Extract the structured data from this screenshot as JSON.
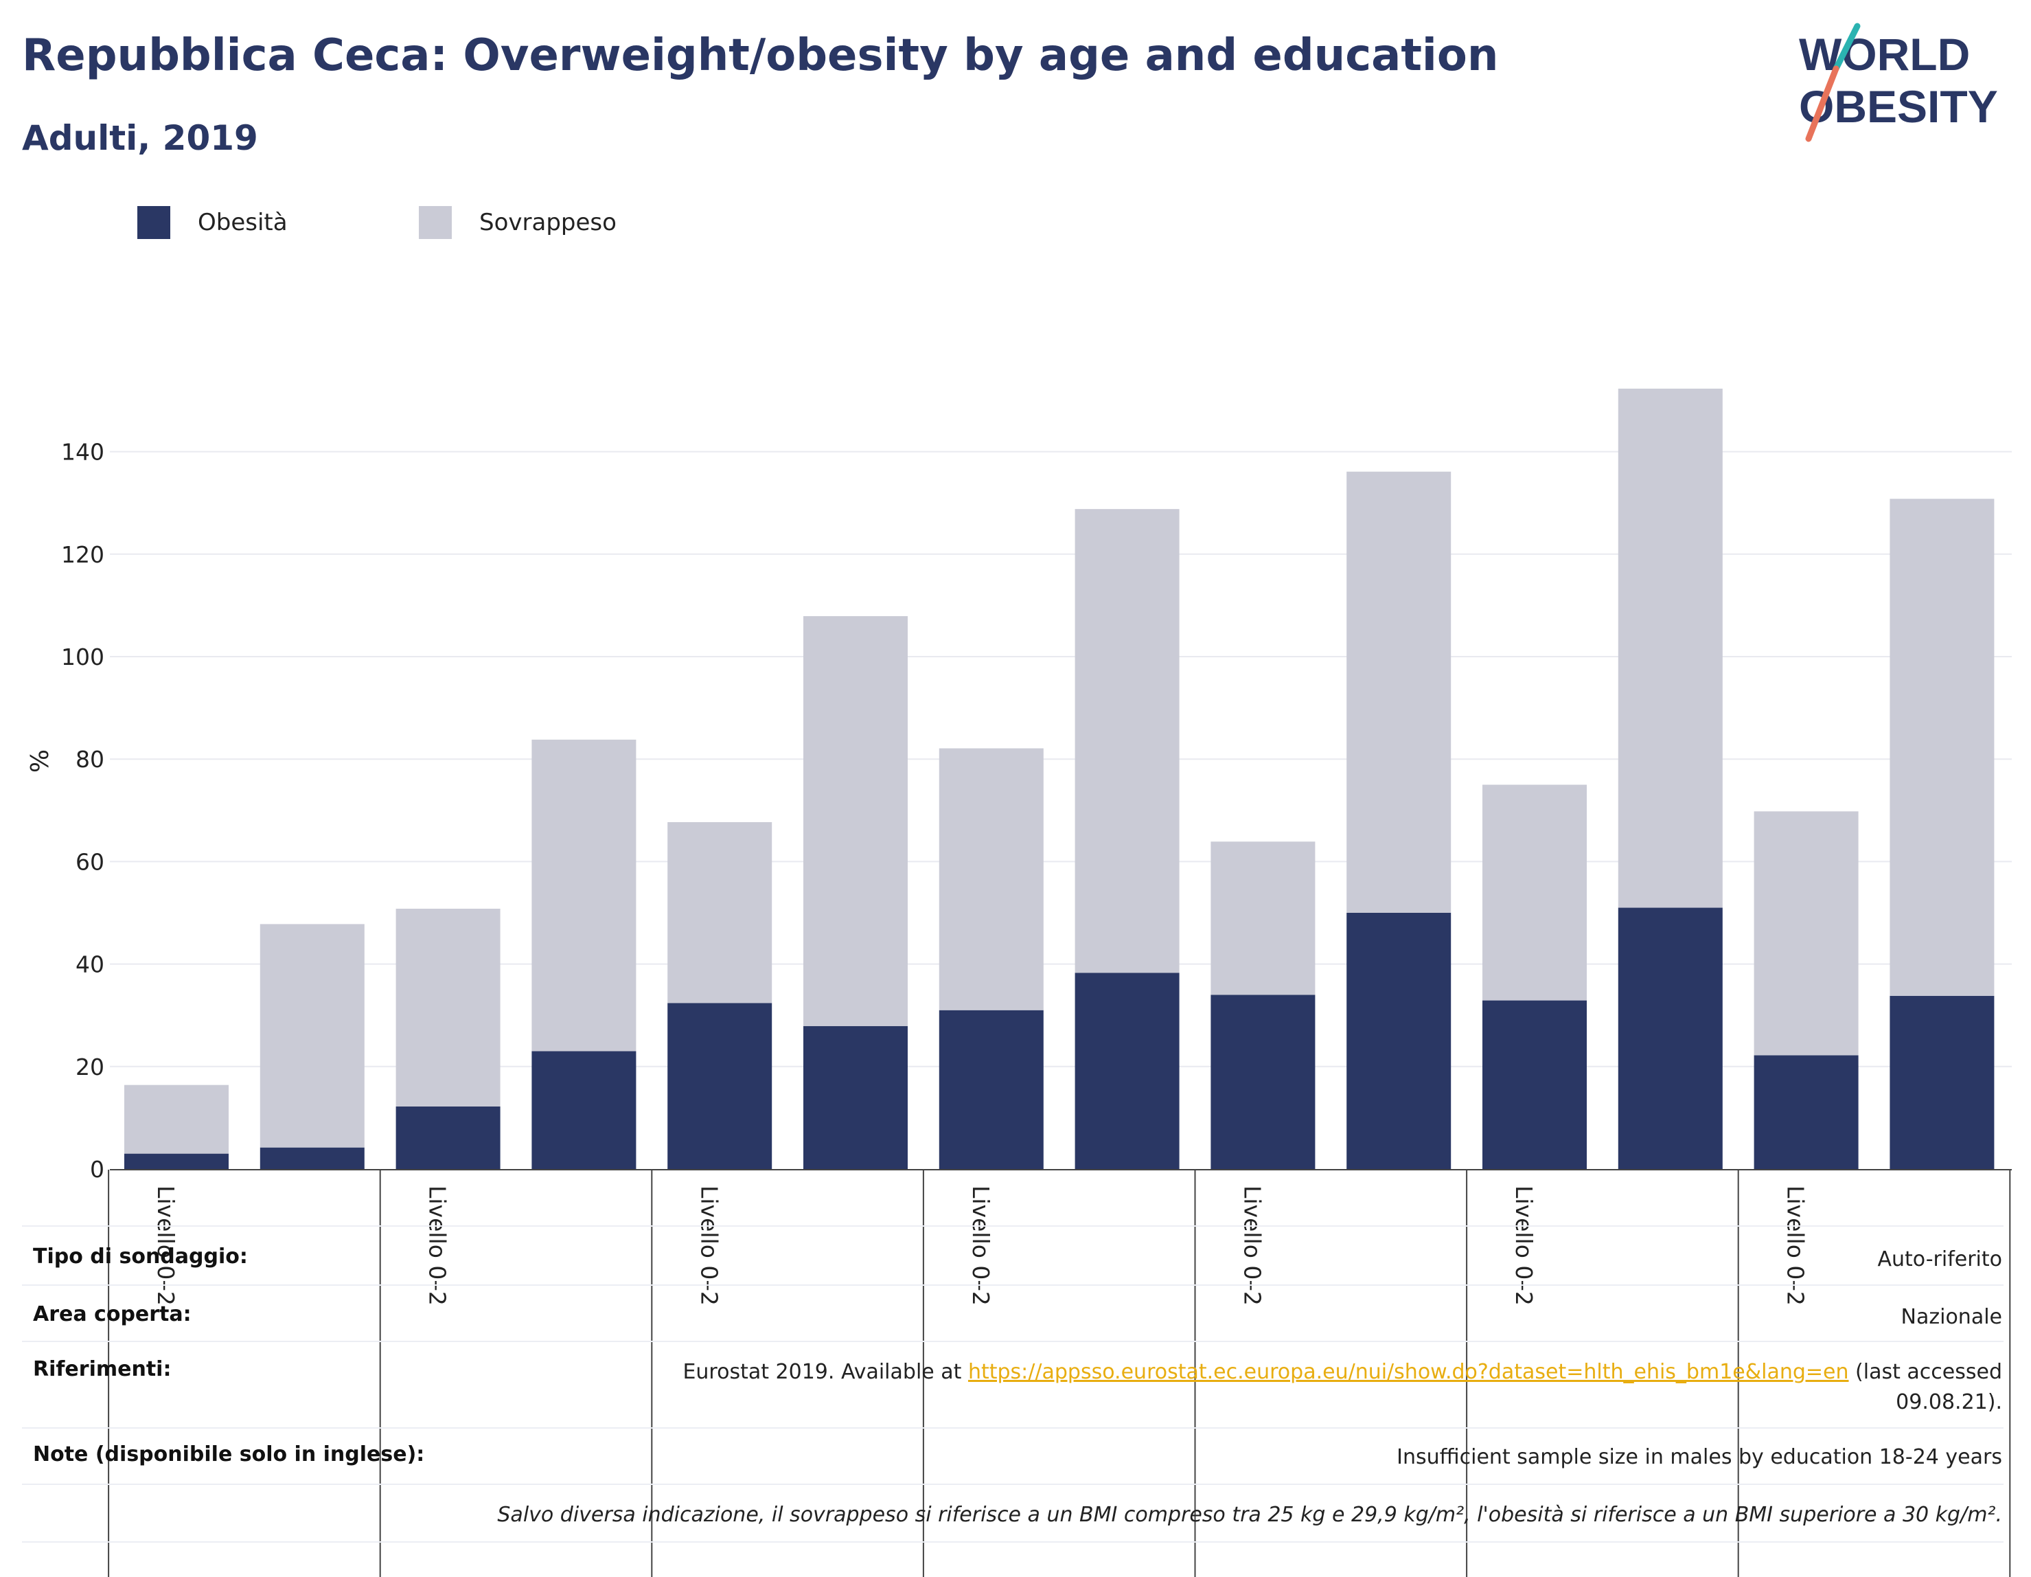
{
  "header": {
    "title": "Repubblica Ceca: Overweight/obesity by age and education",
    "subtitle": "Adulti, 2019"
  },
  "logo": {
    "line1": "WORLD",
    "line2": "OBESITY",
    "colors": {
      "text": "#2a3764",
      "slash_top": "#2bb3b1",
      "slash_bottom": "#e8735a"
    }
  },
  "legend": [
    {
      "label": "Obesità",
      "color": "#2a3764"
    },
    {
      "label": "Sovrappeso",
      "color": "#cacbd6"
    }
  ],
  "chart_data": {
    "type": "bar",
    "stacked": true,
    "ylabel": "%",
    "ylim": [
      0,
      155
    ],
    "yticks": [
      0,
      20,
      40,
      60,
      80,
      100,
      120,
      140
    ],
    "grid": true,
    "legend_position": "top-left",
    "group_labels": [
      "Livello 0–2",
      "Livello 0–2",
      "Livello 0–2",
      "Livello 0–2",
      "Livello 0–2",
      "Livello 0–2",
      "Livello 0–2"
    ],
    "bars_per_group": 2,
    "series": [
      {
        "name": "Obesità",
        "color": "#2a3764",
        "values": [
          3,
          4.2,
          12.2,
          23,
          32.4,
          27.9,
          31,
          38.3,
          34,
          50,
          32.9,
          51,
          22.2,
          33.8
        ]
      },
      {
        "name": "Sovrappeso",
        "color": "#cacbd6",
        "values": [
          13.4,
          43.6,
          38.6,
          60.8,
          35.3,
          80,
          51.1,
          90.5,
          29.9,
          86.1,
          42.1,
          101.3,
          47.6,
          97
        ]
      }
    ]
  },
  "info": {
    "survey_type": {
      "key": "Tipo di sondaggio:",
      "value": "Auto-riferito"
    },
    "area": {
      "key": "Area coperta:",
      "value": "Nazionale"
    },
    "references": {
      "key": "Riferimenti:",
      "prefix": "Eurostat 2019. Available at ",
      "link": "https://appsso.eurostat.ec.europa.eu/nui/show.do?dataset=hlth_ehis_bm1e&lang=en",
      "suffix_line1": " (last accessed",
      "suffix_line2": "09.08.21)."
    },
    "notes": {
      "key": "Note (disponibile solo in inglese):",
      "value": "Insufficient sample size in males by education 18-24 years"
    },
    "footnote": "Salvo diversa indicazione, il sovrappeso si riferisce a un BMI compreso tra 25 kg e 29,9 kg/m², l'obesità si riferisce a un BMI superiore a 30 kg/m²."
  }
}
